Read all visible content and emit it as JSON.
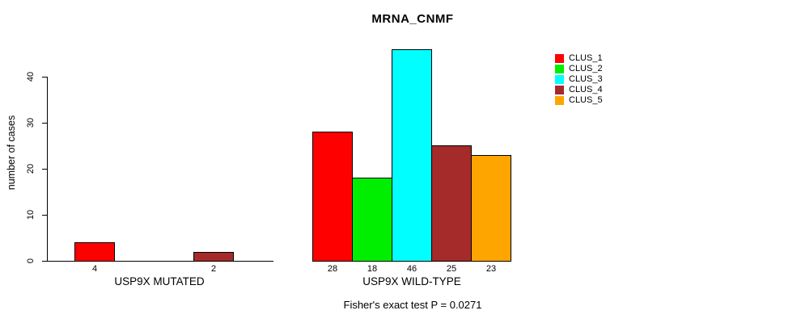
{
  "chart_data": {
    "type": "bar",
    "title": "MRNA_CNMF",
    "ylabel": "number of cases",
    "xlabel": "",
    "ylim": [
      0,
      46
    ],
    "yticks": [
      0,
      10,
      20,
      30,
      40
    ],
    "grid": false,
    "legend_position": "right",
    "groups": [
      "USP9X MUTATED",
      "USP9X WILD-TYPE"
    ],
    "series": [
      {
        "name": "CLUS_1",
        "color": "#FF0000",
        "values": [
          4,
          28
        ]
      },
      {
        "name": "CLUS_2",
        "color": "#00EE00",
        "values": [
          0,
          18
        ]
      },
      {
        "name": "CLUS_3",
        "color": "#00FFFF",
        "values": [
          0,
          46
        ]
      },
      {
        "name": "CLUS_4",
        "color": "#A52A2A",
        "values": [
          2,
          25
        ]
      },
      {
        "name": "CLUS_5",
        "color": "#FFA500",
        "values": [
          0,
          23
        ]
      }
    ],
    "bar_value_labels": {
      "USP9X MUTATED": [
        "4",
        "2"
      ],
      "USP9X WILD-TYPE": [
        "28",
        "18",
        "46",
        "25",
        "23"
      ]
    },
    "annotation": "Fisher's exact test P = 0.0271"
  }
}
